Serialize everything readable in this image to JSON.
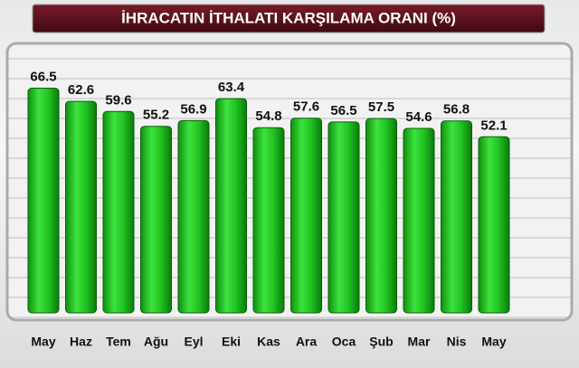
{
  "chart_data": {
    "type": "bar",
    "title": "İHRACATIN İTHALATI KARŞILAMA ORANI (%)",
    "categories": [
      "May",
      "Haz",
      "Tem",
      "Ağu",
      "Eyl",
      "Eki",
      "Kas",
      "Ara",
      "Oca",
      "Şub",
      "Mar",
      "Nis",
      "May"
    ],
    "values": [
      66.5,
      62.6,
      59.6,
      55.2,
      56.9,
      63.4,
      54.8,
      57.6,
      56.5,
      57.5,
      54.6,
      56.8,
      52.1
    ],
    "color": "#22c422",
    "ylim": [
      0,
      76
    ]
  }
}
